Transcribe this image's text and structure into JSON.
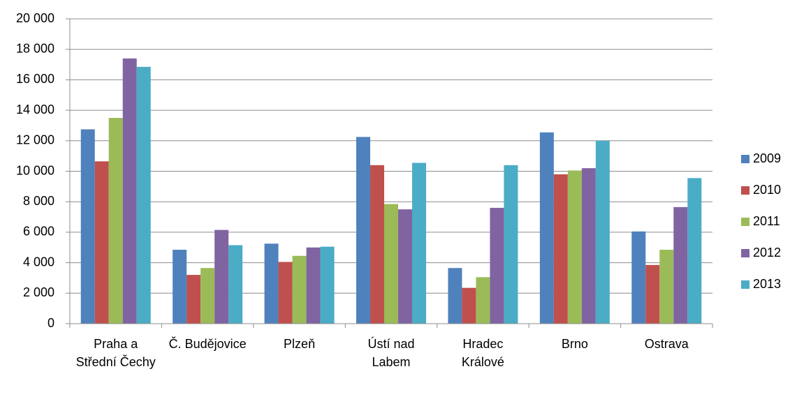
{
  "chart_data": {
    "type": "bar",
    "categories": [
      "Praha a Střední Čechy",
      "Č. Budějovice",
      "Plzeň",
      "Ústí nad Labem",
      "Hradec Králové",
      "Brno",
      "Ostrava"
    ],
    "series": [
      {
        "name": "2009",
        "color": "#4f81bd",
        "values": [
          12750,
          4850,
          5250,
          12250,
          3650,
          12550,
          6050
        ]
      },
      {
        "name": "2010",
        "color": "#c0504d",
        "values": [
          10650,
          3200,
          4050,
          10400,
          2350,
          9800,
          3850
        ]
      },
      {
        "name": "2011",
        "color": "#9bbb59",
        "values": [
          13500,
          3650,
          4450,
          7850,
          3050,
          10050,
          4850
        ]
      },
      {
        "name": "2012",
        "color": "#8064a2",
        "values": [
          17400,
          6150,
          5000,
          7500,
          7600,
          10200,
          7650
        ]
      },
      {
        "name": "2013",
        "color": "#4bacc6",
        "values": [
          16850,
          5150,
          5050,
          10550,
          10400,
          12000,
          9550
        ]
      }
    ],
    "ylim": [
      0,
      20000
    ],
    "yticks": [
      0,
      {
        "value": 2000,
        "label": "2 000"
      },
      {
        "value": 4000,
        "label": "4 000"
      },
      {
        "value": 6000,
        "label": "6 000"
      },
      {
        "value": 8000,
        "label": "8 000"
      },
      {
        "value": 10000,
        "label": "10 000"
      },
      {
        "value": 12000,
        "label": "12 000"
      },
      {
        "value": 14000,
        "label": "14 000"
      },
      {
        "value": 16000,
        "label": "16 000"
      },
      {
        "value": 18000,
        "label": "18 000"
      },
      {
        "value": 20000,
        "label": "20 000"
      }
    ],
    "grid": true,
    "legend": "right"
  }
}
